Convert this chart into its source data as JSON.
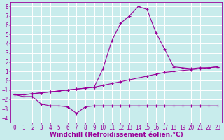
{
  "background_color": "#c8ecec",
  "grid_color": "#ffffff",
  "line_color": "#990099",
  "marker": "+",
  "xlabel": "Windchill (Refroidissement éolien,°C)",
  "xlabel_fontsize": 6.5,
  "tick_fontsize": 5.5,
  "xlim": [
    -0.5,
    23.5
  ],
  "ylim": [
    -4.5,
    8.5
  ],
  "xticks": [
    0,
    1,
    2,
    3,
    4,
    5,
    6,
    7,
    8,
    9,
    10,
    11,
    12,
    13,
    14,
    15,
    16,
    17,
    18,
    19,
    20,
    21,
    22,
    23
  ],
  "yticks": [
    -4,
    -3,
    -2,
    -1,
    0,
    1,
    2,
    3,
    4,
    5,
    6,
    7,
    8
  ],
  "series": [
    {
      "x": [
        0,
        1,
        2,
        3,
        4,
        5,
        6,
        7,
        8,
        9,
        10,
        11,
        12,
        13,
        14,
        15,
        16,
        17,
        18,
        19,
        20,
        21,
        22,
        23
      ],
      "y": [
        -1.5,
        -1.7,
        -1.7,
        -2.5,
        -2.7,
        -2.7,
        -2.8,
        -3.5,
        -2.8,
        -2.7,
        -2.7,
        -2.7,
        -2.7,
        -2.7,
        -2.7,
        -2.7,
        -2.7,
        -2.7,
        -2.7,
        -2.7,
        -2.7,
        -2.7,
        -2.7,
        -2.7
      ]
    },
    {
      "x": [
        0,
        1,
        2,
        3,
        4,
        5,
        6,
        7,
        8,
        9,
        10,
        11,
        12,
        13,
        14,
        15,
        16,
        17,
        18,
        19,
        20,
        21,
        22,
        23
      ],
      "y": [
        -1.5,
        -1.5,
        -1.4,
        -1.3,
        -1.2,
        -1.1,
        -1.0,
        -0.9,
        -0.8,
        -0.7,
        -0.5,
        -0.3,
        -0.1,
        0.1,
        0.3,
        0.5,
        0.7,
        0.9,
        1.0,
        1.1,
        1.2,
        1.3,
        1.4,
        1.5
      ]
    },
    {
      "x": [
        0,
        1,
        2,
        3,
        4,
        5,
        6,
        7,
        8,
        9,
        10,
        11,
        12,
        13,
        14,
        15,
        16,
        17,
        18,
        19,
        20,
        21,
        22,
        23
      ],
      "y": [
        -1.5,
        -1.5,
        -1.4,
        -1.3,
        -1.2,
        -1.1,
        -1.0,
        -0.9,
        -0.8,
        -0.7,
        1.3,
        4.3,
        6.2,
        7.0,
        8.0,
        7.7,
        5.2,
        3.4,
        1.5,
        1.4,
        1.3,
        1.4,
        1.4,
        1.5
      ]
    }
  ]
}
